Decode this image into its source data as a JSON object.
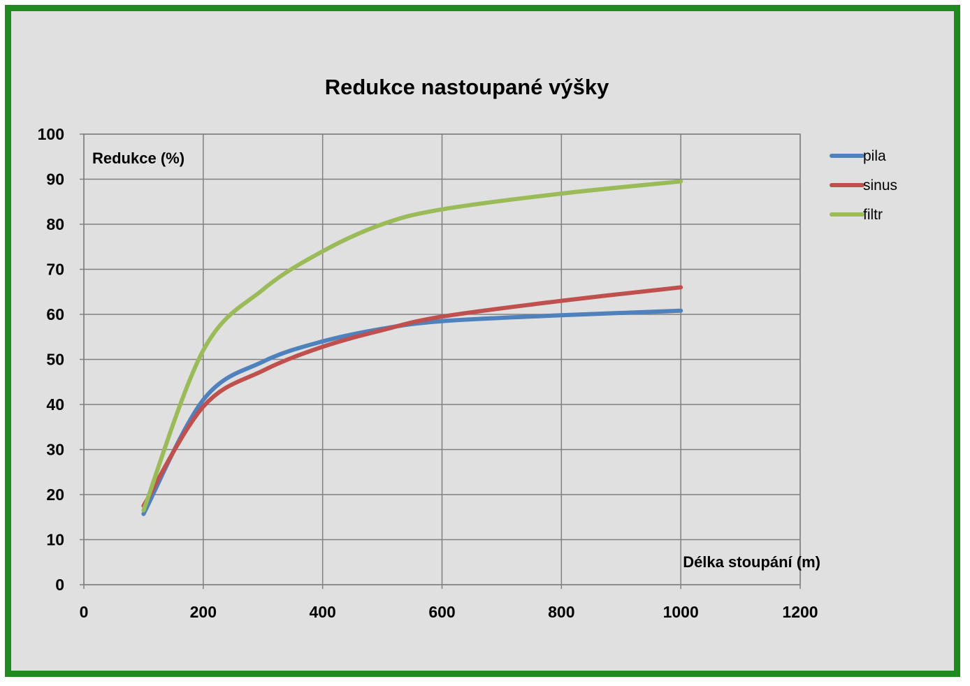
{
  "chart_data": {
    "type": "line",
    "title": "Redukce nastoupané výšky",
    "ylabel": "Redukce (%)",
    "xlabel": "Délka stoupání (m)",
    "xlim": [
      0,
      1200
    ],
    "ylim": [
      0,
      100
    ],
    "xticks": [
      "0",
      "200",
      "400",
      "600",
      "800",
      "1000",
      "1200"
    ],
    "yticks": [
      "0",
      "10",
      "20",
      "30",
      "40",
      "50",
      "60",
      "70",
      "80",
      "90",
      "100"
    ],
    "grid": true,
    "legend_position": "right",
    "series": [
      {
        "name": "pila",
        "color": "#4f81bd",
        "points": [
          [
            100,
            15.7
          ],
          [
            200,
            41
          ],
          [
            300,
            49.5
          ],
          [
            400,
            54
          ],
          [
            500,
            56.8
          ],
          [
            600,
            58.5
          ],
          [
            800,
            59.8
          ],
          [
            1000,
            60.8
          ]
        ]
      },
      {
        "name": "sinus",
        "color": "#c0504d",
        "points": [
          [
            100,
            17.5
          ],
          [
            200,
            39.5
          ],
          [
            300,
            47.5
          ],
          [
            400,
            52.8
          ],
          [
            500,
            56.5
          ],
          [
            600,
            59.5
          ],
          [
            800,
            63
          ],
          [
            1000,
            66
          ]
        ]
      },
      {
        "name": "filtr",
        "color": "#9bbb59",
        "points": [
          [
            100,
            16.5
          ],
          [
            200,
            52
          ],
          [
            300,
            65.5
          ],
          [
            400,
            74
          ],
          [
            500,
            80
          ],
          [
            600,
            83.3
          ],
          [
            800,
            86.8
          ],
          [
            1000,
            89.5
          ]
        ]
      }
    ]
  }
}
